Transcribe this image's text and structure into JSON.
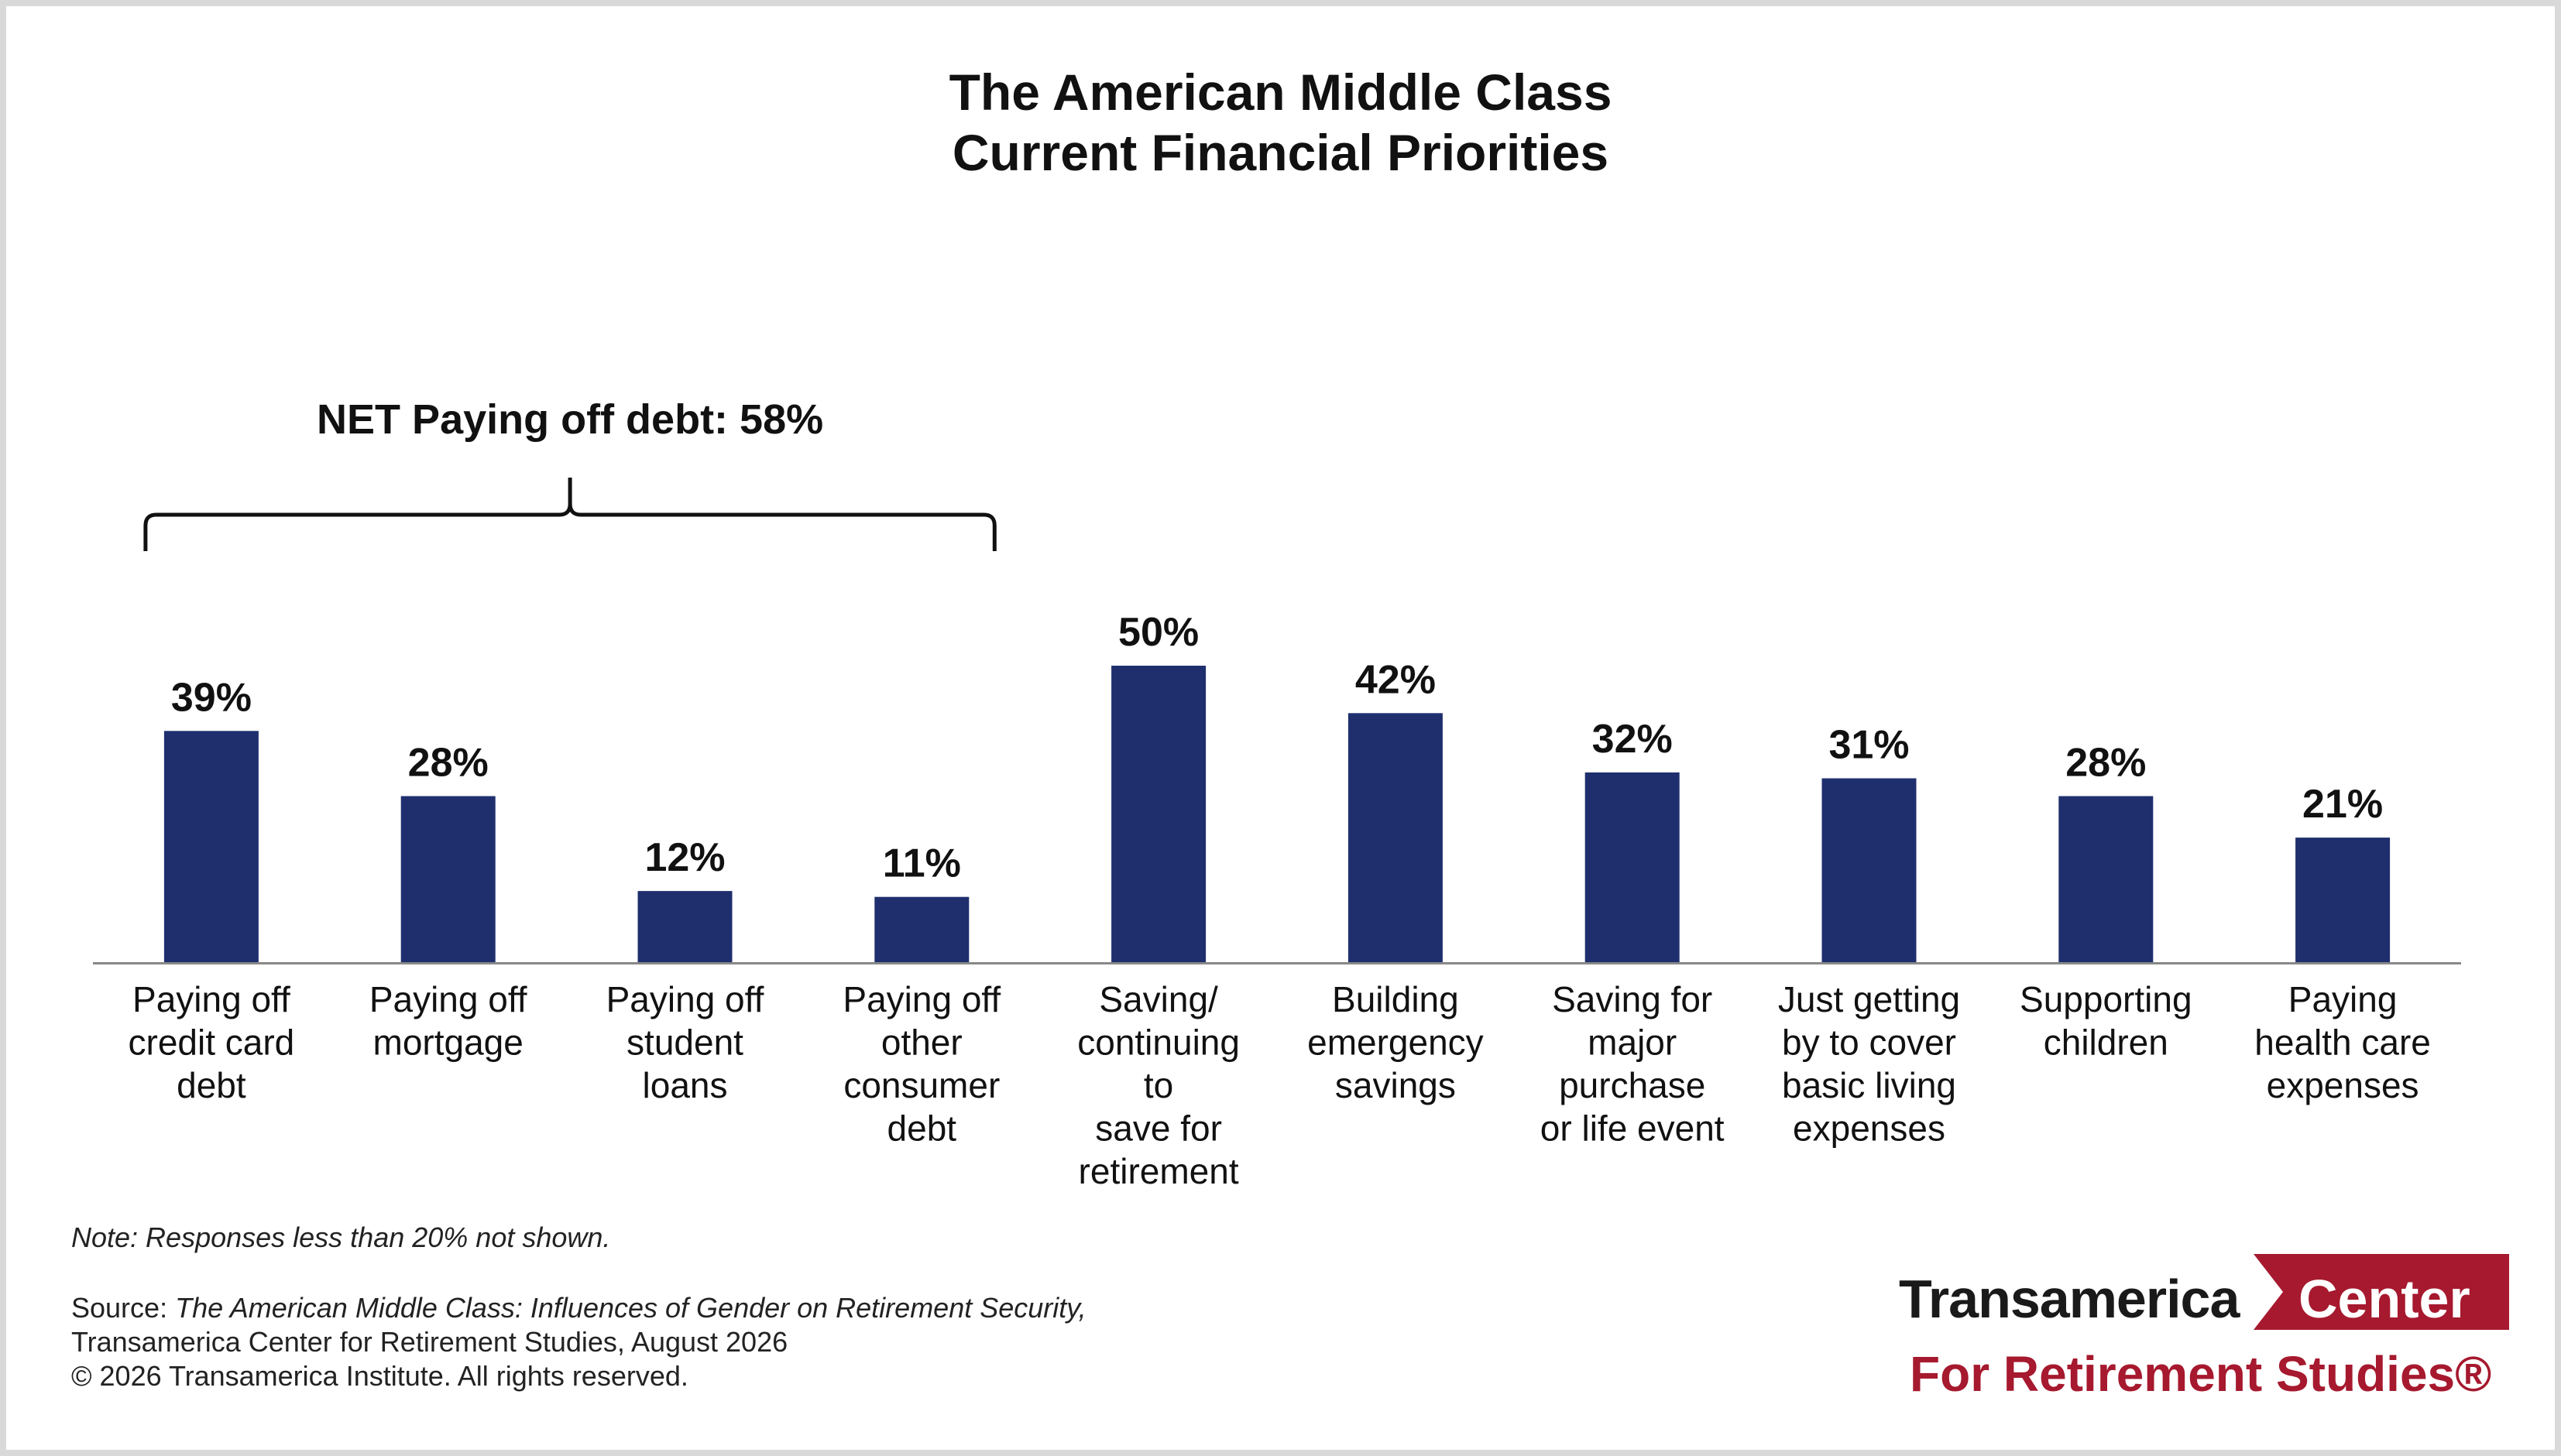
{
  "chart_data": {
    "type": "bar",
    "title": [
      "The American Middle Class",
      "Current Financial Priorities"
    ],
    "categories": [
      [
        "Paying off",
        "credit card",
        "debt"
      ],
      [
        "Paying off",
        "mortgage"
      ],
      [
        "Paying off",
        "student",
        "loans"
      ],
      [
        "Paying off",
        "other",
        "consumer",
        "debt"
      ],
      [
        "Saving/",
        "continuing",
        "to",
        "save for",
        "retirement"
      ],
      [
        "Building",
        "emergency",
        "savings"
      ],
      [
        "Saving for",
        "major",
        "purchase",
        "or life event"
      ],
      [
        "Just getting",
        "by to cover",
        "basic living",
        "expenses"
      ],
      [
        "Supporting",
        "children"
      ],
      [
        "Paying",
        "health care",
        "expenses"
      ]
    ],
    "values": [
      39,
      28,
      12,
      11,
      50,
      42,
      32,
      31,
      28,
      21
    ],
    "value_labels": [
      "39%",
      "28%",
      "12%",
      "11%",
      "50%",
      "42%",
      "32%",
      "31%",
      "28%",
      "21%"
    ],
    "ylim": [
      0,
      50
    ],
    "grid": false,
    "bar_color": "#1f2f6e",
    "annotation": {
      "text": "NET Paying off debt: 58%",
      "spans_categories": [
        0,
        3
      ]
    }
  },
  "footer": {
    "note": "Note: Responses less than 20% not shown.",
    "source_prefix": "Source: ",
    "source_title": "The American Middle Class: Influences of Gender on Retirement Security,",
    "source_line2": "Transamerica Center for Retirement Studies, August 2026",
    "copyright": "© 2026 Transamerica Institute. All rights reserved."
  },
  "logo": {
    "word": "Transamerica",
    "flag_text": "Center",
    "subtitle": "For Retirement Studies®",
    "brand_color": "#a6192e"
  }
}
